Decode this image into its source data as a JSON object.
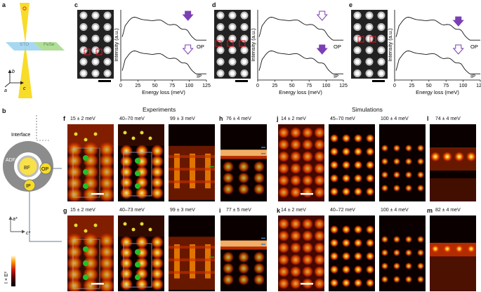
{
  "panel_letters": {
    "a": "a",
    "b": "b",
    "c": "c",
    "d": "d",
    "e": "e",
    "f": "f",
    "g": "g",
    "h": "h",
    "i": "i",
    "j": "j",
    "k": "k",
    "l": "l",
    "m": "m"
  },
  "panel_a": {
    "material_left": "STO",
    "material_right": "FeSe",
    "axis_b": "b",
    "axis_c": "c",
    "axis_a": "a"
  },
  "panel_b": {
    "interface": "Interface",
    "adf": "ADF",
    "bf": "BF",
    "op": "OP",
    "ip": "IP",
    "axis_a_star": "a*",
    "axis_c_star": "c*",
    "colorbar_label": "I × E²"
  },
  "section_titles": {
    "experiments": "Experiments",
    "simulations": "Simulations"
  },
  "spectra": {
    "xlabel": "Energy loss (meV)",
    "ylabel": "Intensity (a.u.)",
    "xticks": [
      "0",
      "25",
      "50",
      "75",
      "100",
      "125"
    ],
    "op": "OP",
    "ip": "IP"
  },
  "map_titles": {
    "f": "15 ± 2 meV",
    "f2": "40–70 meV",
    "f3": "99 ± 3 meV",
    "h": "76 ± 4 meV",
    "g": "15 ± 2 meV",
    "g2": "40–73 meV",
    "g3": "99 ± 3 meV",
    "i": "77 ± 5 meV",
    "j": "14 ± 2 meV",
    "j2": "45–70 meV",
    "j3": "100 ± 4 meV",
    "l": "74 ± 4 meV",
    "k": "14 ± 2 meV",
    "k2": "40–72 meV",
    "k3": "100 ± 4 meV",
    "m": "82 ± 4 meV"
  },
  "colors": {
    "arrow": "#7a3fb5",
    "spectrum_dots": "#f08a8a",
    "fit": "#111111",
    "box": "#e0141e",
    "accent_green": "#2ca02c",
    "accent_blue": "#3a7fc4"
  }
}
